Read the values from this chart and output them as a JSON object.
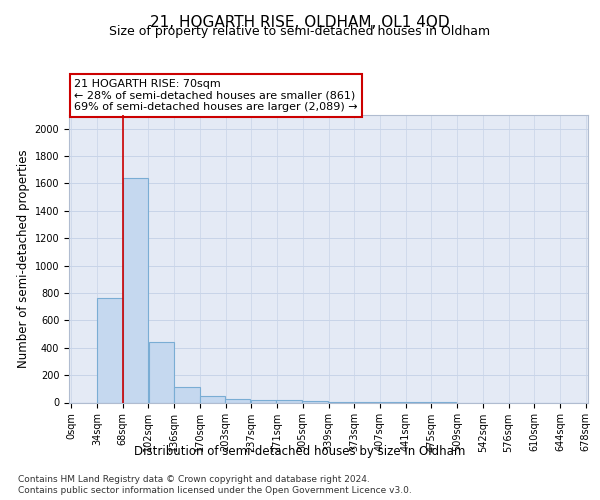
{
  "title": "21, HOGARTH RISE, OLDHAM, OL1 4QD",
  "subtitle": "Size of property relative to semi-detached houses in Oldham",
  "xlabel": "Distribution of semi-detached houses by size in Oldham",
  "ylabel": "Number of semi-detached properties",
  "footer_line1": "Contains HM Land Registry data © Crown copyright and database right 2024.",
  "footer_line2": "Contains public sector information licensed under the Open Government Licence v3.0.",
  "annotation_title": "21 HOGARTH RISE: 70sqm",
  "annotation_line1": "← 28% of semi-detached houses are smaller (861)",
  "annotation_line2": "69% of semi-detached houses are larger (2,089) →",
  "bar_left_edges": [
    0,
    34,
    68,
    102,
    136,
    170,
    203,
    237,
    271,
    305,
    339,
    373,
    407,
    441,
    475,
    509,
    542,
    576,
    610,
    644
  ],
  "bar_widths": [
    34,
    34,
    34,
    34,
    34,
    33,
    34,
    34,
    34,
    34,
    34,
    34,
    34,
    34,
    34,
    33,
    34,
    34,
    34,
    34
  ],
  "bar_heights": [
    0,
    760,
    1640,
    440,
    113,
    50,
    28,
    20,
    15,
    8,
    4,
    3,
    2,
    1,
    1,
    0,
    0,
    0,
    0,
    0
  ],
  "bar_color": "#c5d8ef",
  "bar_edge_color": "#7aadd4",
  "vline_color": "#cc0000",
  "vline_x": 68,
  "ylim": [
    0,
    2100
  ],
  "yticks": [
    0,
    200,
    400,
    600,
    800,
    1000,
    1200,
    1400,
    1600,
    1800,
    2000
  ],
  "xtick_labels": [
    "0sqm",
    "34sqm",
    "68sqm",
    "102sqm",
    "136sqm",
    "170sqm",
    "203sqm",
    "237sqm",
    "271sqm",
    "305sqm",
    "339sqm",
    "373sqm",
    "407sqm",
    "441sqm",
    "475sqm",
    "509sqm",
    "542sqm",
    "576sqm",
    "610sqm",
    "644sqm",
    "678sqm"
  ],
  "grid_color": "#c8d4e8",
  "background_color": "#e4eaf5",
  "annotation_box_color": "#ffffff",
  "annotation_box_edge": "#cc0000",
  "title_fontsize": 11,
  "subtitle_fontsize": 9,
  "axis_label_fontsize": 8.5,
  "tick_fontsize": 7,
  "annotation_fontsize": 8,
  "footer_fontsize": 6.5
}
